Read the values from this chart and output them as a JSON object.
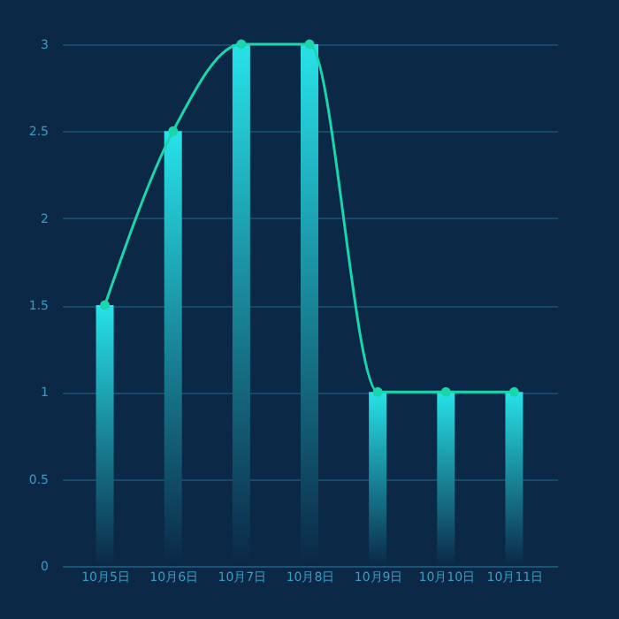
{
  "chart_data": {
    "type": "bar",
    "categories": [
      "10月5日",
      "10月6日",
      "10月7日",
      "10月8日",
      "10月9日",
      "10月10日",
      "10月11日"
    ],
    "series": [
      {
        "color": "#27e2e8",
        "values": [
          1.5,
          2.5,
          3,
          3,
          1,
          1,
          1
        ]
      },
      {
        "type": "line",
        "color": "#1ad6aa",
        "marker": "circle",
        "line_style": "solid",
        "values": [
          1.5,
          2.5,
          3,
          3,
          1,
          1,
          1
        ]
      }
    ],
    "ylim": [
      0,
      3
    ],
    "yticks": [
      0,
      0.5,
      1,
      1.5,
      2,
      2.5,
      3
    ],
    "grid": "y"
  }
}
